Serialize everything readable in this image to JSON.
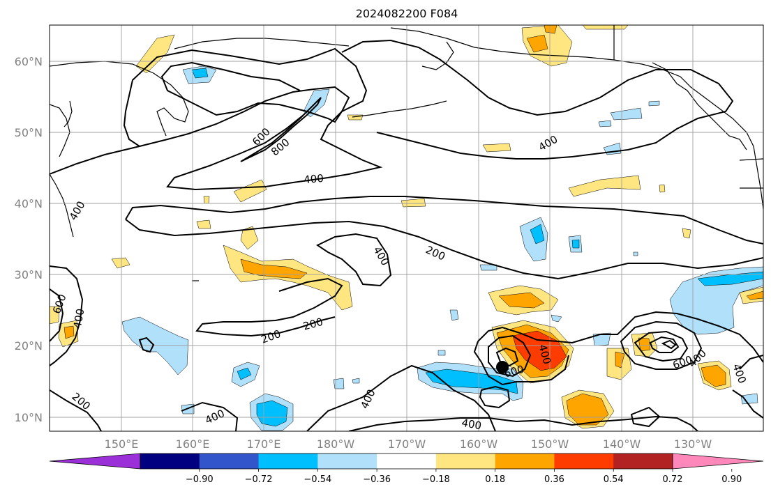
{
  "title": "2024082200 F084",
  "lat_labels": [
    "10°N",
    "20°N",
    "30°N",
    "40°N",
    "50°N",
    "60°N"
  ],
  "lon_labels": [
    "150°E",
    "160°E",
    "170°E",
    "180°W",
    "170°W",
    "160°W",
    "150°W",
    "140°W",
    "130°W"
  ],
  "contour_labels": [
    "600",
    "800",
    "400",
    "400",
    "400",
    "200",
    "400",
    "200",
    "200",
    "600",
    "400",
    "400",
    "600",
    "400",
    "600",
    "400",
    "400",
    "200",
    "400",
    "400"
  ],
  "colorbar": {
    "ticks": [
      "−0.90",
      "−0.72",
      "−0.54",
      "−0.36",
      "−0.18",
      "0.18",
      "0.36",
      "0.54",
      "0.72",
      "0.90"
    ],
    "colors": [
      "#9b30d9",
      "#000080",
      "#3355cc",
      "#00bfff",
      "#b0e0fa",
      "#ffffff",
      "#ffe680",
      "#ffa500",
      "#ff3c00",
      "#b22222",
      "#ff88bb"
    ]
  },
  "colors": {
    "land_outline": "#000000",
    "grid": "#a0a0a0",
    "contour": "#000000",
    "storm_marker": "#000000"
  }
}
